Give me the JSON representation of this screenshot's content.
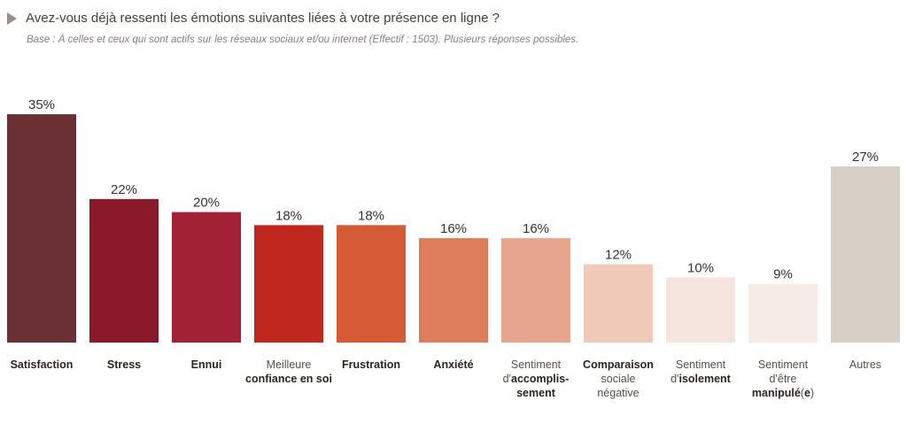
{
  "title": "Avez-vous déjà ressenti les émotions suivantes liées à votre présence en ligne ?",
  "subtitle": "Base : À celles et ceux qui sont actifs sur les réseaux sociaux et/ou internet (Effectif : 1503). Plusieurs réponses possibles.",
  "chart_data": {
    "type": "bar",
    "title": "Avez-vous déjà ressenti les émotions suivantes liées à votre présence en ligne ?",
    "ylim": [
      0,
      36
    ],
    "grid": false,
    "categories": [
      "Satisfaction",
      "Stress",
      "Ennui",
      "Meilleure confiance en soi",
      "Frustration",
      "Anxiété",
      "Sentiment d'accomplissement",
      "Comparaison sociale négative",
      "Sentiment d'isolement",
      "Sentiment d'être manipulé(e)",
      "Autres"
    ],
    "values": [
      35,
      22,
      20,
      18,
      18,
      16,
      16,
      12,
      10,
      9,
      27
    ],
    "value_labels": [
      "35%",
      "22%",
      "20%",
      "18%",
      "18%",
      "16%",
      "16%",
      "12%",
      "10%",
      "9%",
      "27%"
    ],
    "colors": [
      "#6b3033",
      "#8a1a2a",
      "#a32135",
      "#c0281f",
      "#d45b35",
      "#de7d5c",
      "#e8a58e",
      "#f0c9b8",
      "#f5e5de",
      "#f6ebe5",
      "#d8cfc6"
    ],
    "label_lines": [
      [
        [
          {
            "t": "Satisfaction",
            "b": true
          }
        ]
      ],
      [
        [
          {
            "t": "Stress",
            "b": true
          }
        ]
      ],
      [
        [
          {
            "t": "Ennui",
            "b": true
          }
        ]
      ],
      [
        [
          {
            "t": "Meilleure",
            "b": false
          }
        ],
        [
          {
            "t": "confiance en soi",
            "b": true
          }
        ]
      ],
      [
        [
          {
            "t": "Frustration",
            "b": true
          }
        ]
      ],
      [
        [
          {
            "t": "Anxiété",
            "b": true
          }
        ]
      ],
      [
        [
          {
            "t": "Sentiment",
            "b": false
          }
        ],
        [
          {
            "t": "d'",
            "b": false
          },
          {
            "t": "accomplis-",
            "b": true
          }
        ],
        [
          {
            "t": "sement",
            "b": true
          }
        ]
      ],
      [
        [
          {
            "t": "Comparaison",
            "b": true
          }
        ],
        [
          {
            "t": "sociale",
            "b": false
          }
        ],
        [
          {
            "t": "négative",
            "b": false
          }
        ]
      ],
      [
        [
          {
            "t": "Sentiment",
            "b": false
          }
        ],
        [
          {
            "t": "d'",
            "b": false
          },
          {
            "t": "isolement",
            "b": true
          }
        ]
      ],
      [
        [
          {
            "t": "Sentiment",
            "b": false
          }
        ],
        [
          {
            "t": "d'être",
            "b": false
          }
        ],
        [
          {
            "t": "manipulé",
            "b": true
          },
          {
            "t": "(",
            "b": false
          },
          {
            "t": "e",
            "b": true
          },
          {
            "t": ")",
            "b": false
          }
        ]
      ],
      [
        [
          {
            "t": "Autres",
            "b": false
          }
        ]
      ]
    ]
  }
}
